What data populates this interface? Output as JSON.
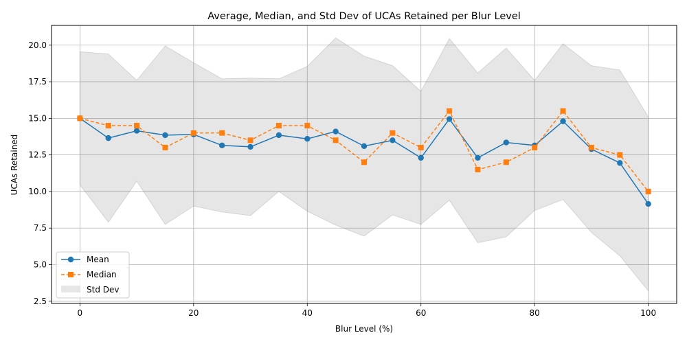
{
  "chart_data": {
    "type": "line",
    "title": "Average, Median, and Std Dev of UCAs Retained per Blur Level",
    "xlabel": "Blur Level (%)",
    "ylabel": "UCAs Retained",
    "xlim": [
      -5,
      105
    ],
    "ylim": [
      2.35,
      21.35
    ],
    "xticks": [
      0,
      20,
      40,
      60,
      80,
      100
    ],
    "yticks": [
      2.5,
      5.0,
      7.5,
      10.0,
      12.5,
      15.0,
      17.5,
      20.0
    ],
    "xtick_labels": [
      "0",
      "20",
      "40",
      "60",
      "80",
      "100"
    ],
    "ytick_labels": [
      "2.5",
      "5.0",
      "7.5",
      "10.0",
      "12.5",
      "15.0",
      "17.5",
      "20.0"
    ],
    "grid": true,
    "legend_position": "lower-left",
    "x": [
      0,
      5,
      10,
      15,
      20,
      25,
      30,
      35,
      40,
      45,
      50,
      55,
      60,
      65,
      70,
      75,
      80,
      85,
      90,
      95,
      100
    ],
    "series": [
      {
        "name": "Mean",
        "color": "#1f77b4",
        "marker": "circle",
        "line_style": "solid",
        "values": [
          15.0,
          13.65,
          14.15,
          13.85,
          13.9,
          13.15,
          13.05,
          13.85,
          13.6,
          14.1,
          13.1,
          13.5,
          12.3,
          14.95,
          12.3,
          13.35,
          13.15,
          14.8,
          12.9,
          11.95,
          9.15
        ]
      },
      {
        "name": "Median",
        "color": "#ff7f0e",
        "marker": "square",
        "line_style": "dashed",
        "values": [
          15.0,
          14.5,
          14.5,
          13.0,
          14.0,
          14.0,
          13.5,
          14.5,
          14.5,
          13.5,
          12.0,
          14.0,
          13.0,
          15.5,
          11.5,
          12.0,
          13.0,
          15.5,
          13.0,
          12.5,
          10.0
        ]
      }
    ],
    "band": {
      "name": "Std Dev",
      "color": "#808080",
      "upper": [
        19.55,
        19.4,
        17.6,
        19.95,
        18.8,
        17.7,
        17.75,
        17.7,
        18.55,
        20.5,
        19.25,
        18.6,
        16.85,
        20.45,
        18.1,
        19.8,
        17.6,
        20.1,
        18.6,
        18.3,
        15.1
      ],
      "lower": [
        10.45,
        7.9,
        10.7,
        7.75,
        9.0,
        8.6,
        8.35,
        10.0,
        8.65,
        7.7,
        6.95,
        8.4,
        7.75,
        9.4,
        6.5,
        6.9,
        8.7,
        9.45,
        7.2,
        5.6,
        3.2
      ]
    }
  }
}
